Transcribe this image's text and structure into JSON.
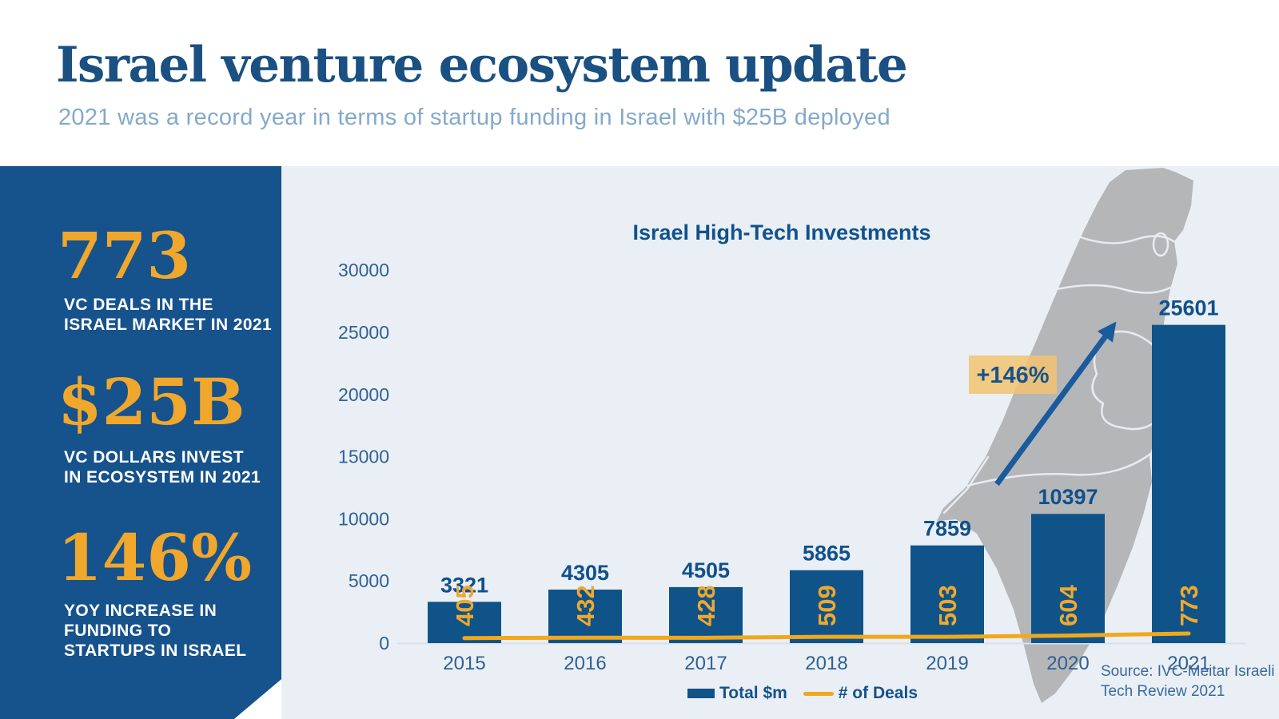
{
  "header": {
    "title": "Israel venture ecosystem update",
    "subtitle": "2021 was a record year in terms of startup funding in Israel with $25B deployed"
  },
  "sidebar": {
    "stats": [
      {
        "value": "773",
        "lines": [
          "VC DEALS IN THE",
          "ISRAEL MARKET IN 2021"
        ]
      },
      {
        "value": "$25B",
        "lines": [
          "VC DOLLARS INVEST",
          "IN ECOSYSTEM IN 2021"
        ]
      },
      {
        "value": "146%",
        "lines": [
          "YOY INCREASE IN",
          "FUNDING TO",
          "STARTUPS IN ISRAEL"
        ]
      }
    ]
  },
  "chart": {
    "title": "Israel High-Tech Investments",
    "annotation": "+146%",
    "legend": {
      "bar_label": "Total $m",
      "line_label": "# of Deals"
    },
    "source_lines": [
      "Source: IVC-Meitar Israeli",
      "Tech Review 2021"
    ]
  },
  "chart_data": {
    "type": "combo",
    "title": "Israel High-Tech Investments",
    "categories": [
      "2015",
      "2016",
      "2017",
      "2018",
      "2019",
      "2020",
      "2021"
    ],
    "series": [
      {
        "name": "Total $m",
        "type": "bar",
        "values": [
          3321,
          4305,
          4505,
          5865,
          7859,
          10397,
          25601
        ]
      },
      {
        "name": "# of Deals",
        "type": "line",
        "values": [
          405,
          432,
          428,
          509,
          503,
          604,
          773
        ]
      }
    ],
    "yticks": [
      0,
      5000,
      10000,
      15000,
      20000,
      25000,
      30000
    ],
    "ylim": [
      0,
      30000
    ],
    "annotation": "+146%",
    "legend_position": "bottom",
    "grid": false
  },
  "colors": {
    "bar_blue": "#0F5389",
    "sidebar_blue": "#16528C",
    "title_blue": "#1A5082",
    "subtitle_blue": "#84A9CA",
    "gold_text": "#EFA82E",
    "gold_line": "#F0A81C",
    "badge_gold": "#F2C36E",
    "arrow_blue": "#1A5B9E",
    "chart_bg": "#EAEFF5",
    "map_gray": "#B5B6B8",
    "axis_label_blue": "#2E6195",
    "source_blue": "#39699B"
  }
}
